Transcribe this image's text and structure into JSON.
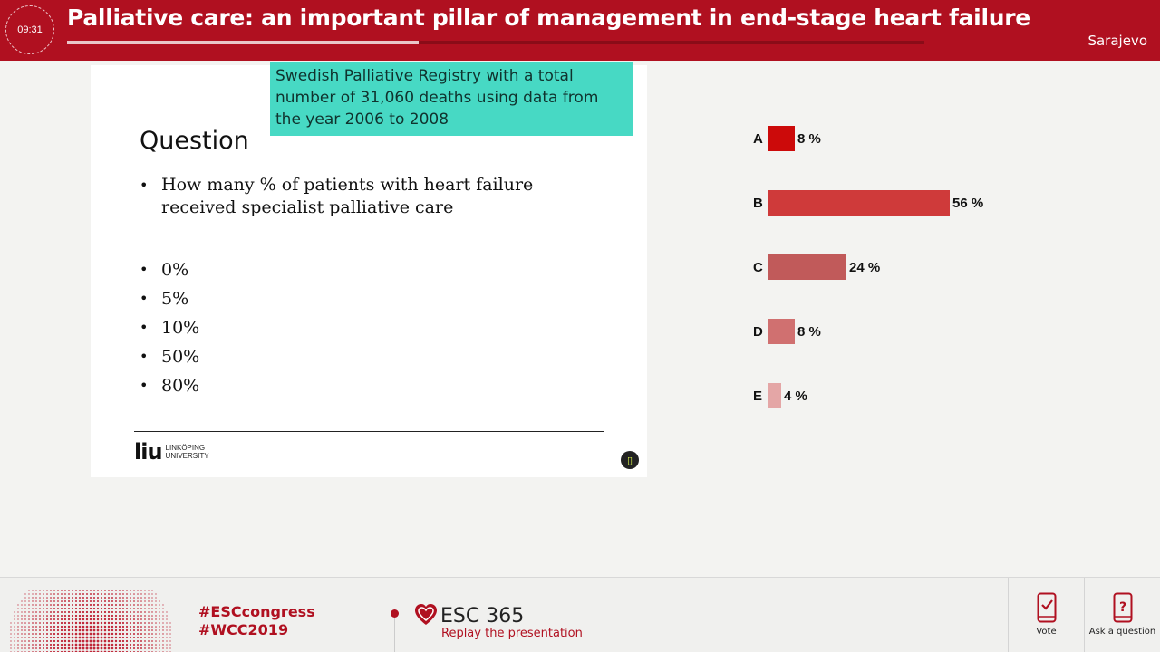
{
  "header": {
    "timer": "09:31",
    "title": "Palliative care: an important pillar of management in end-stage heart failure",
    "location": "Sarajevo",
    "progress_fraction": 0.41,
    "bg_color": "#b01020"
  },
  "slide": {
    "note": "Swedish Palliative Registry with a total number of 31,060 deaths using data from the year 2006 to 2008",
    "heading": "Question",
    "question": "How many % of patients with heart failure received specialist palliative care",
    "options": [
      "0%",
      "5%",
      "10%",
      "50%",
      "80%"
    ],
    "logo_mark": "liu",
    "logo_text_line1": "LINKÖPING",
    "logo_text_line2": "UNIVERSITY"
  },
  "poll": {
    "results": [
      {
        "letter": "A",
        "percent": 8,
        "label": "8 %",
        "color": "#cc0a0a"
      },
      {
        "letter": "B",
        "percent": 56,
        "label": "56 %",
        "color": "#cf3a3a"
      },
      {
        "letter": "C",
        "percent": 24,
        "label": "24 %",
        "color": "#c15a5a"
      },
      {
        "letter": "D",
        "percent": 8,
        "label": "8 %",
        "color": "#d07070"
      },
      {
        "letter": "E",
        "percent": 4,
        "label": "4 %",
        "color": "#e4a6a6"
      }
    ]
  },
  "footer": {
    "hashtag1": "#ESCcongress",
    "hashtag2": "#WCC2019",
    "esc_title": "ESC 365",
    "esc_subtitle": "Replay the presentation",
    "vote_label": "Vote",
    "ask_label": "Ask a question",
    "vote_icon": "phone-check-icon",
    "ask_icon": "phone-question-icon"
  }
}
